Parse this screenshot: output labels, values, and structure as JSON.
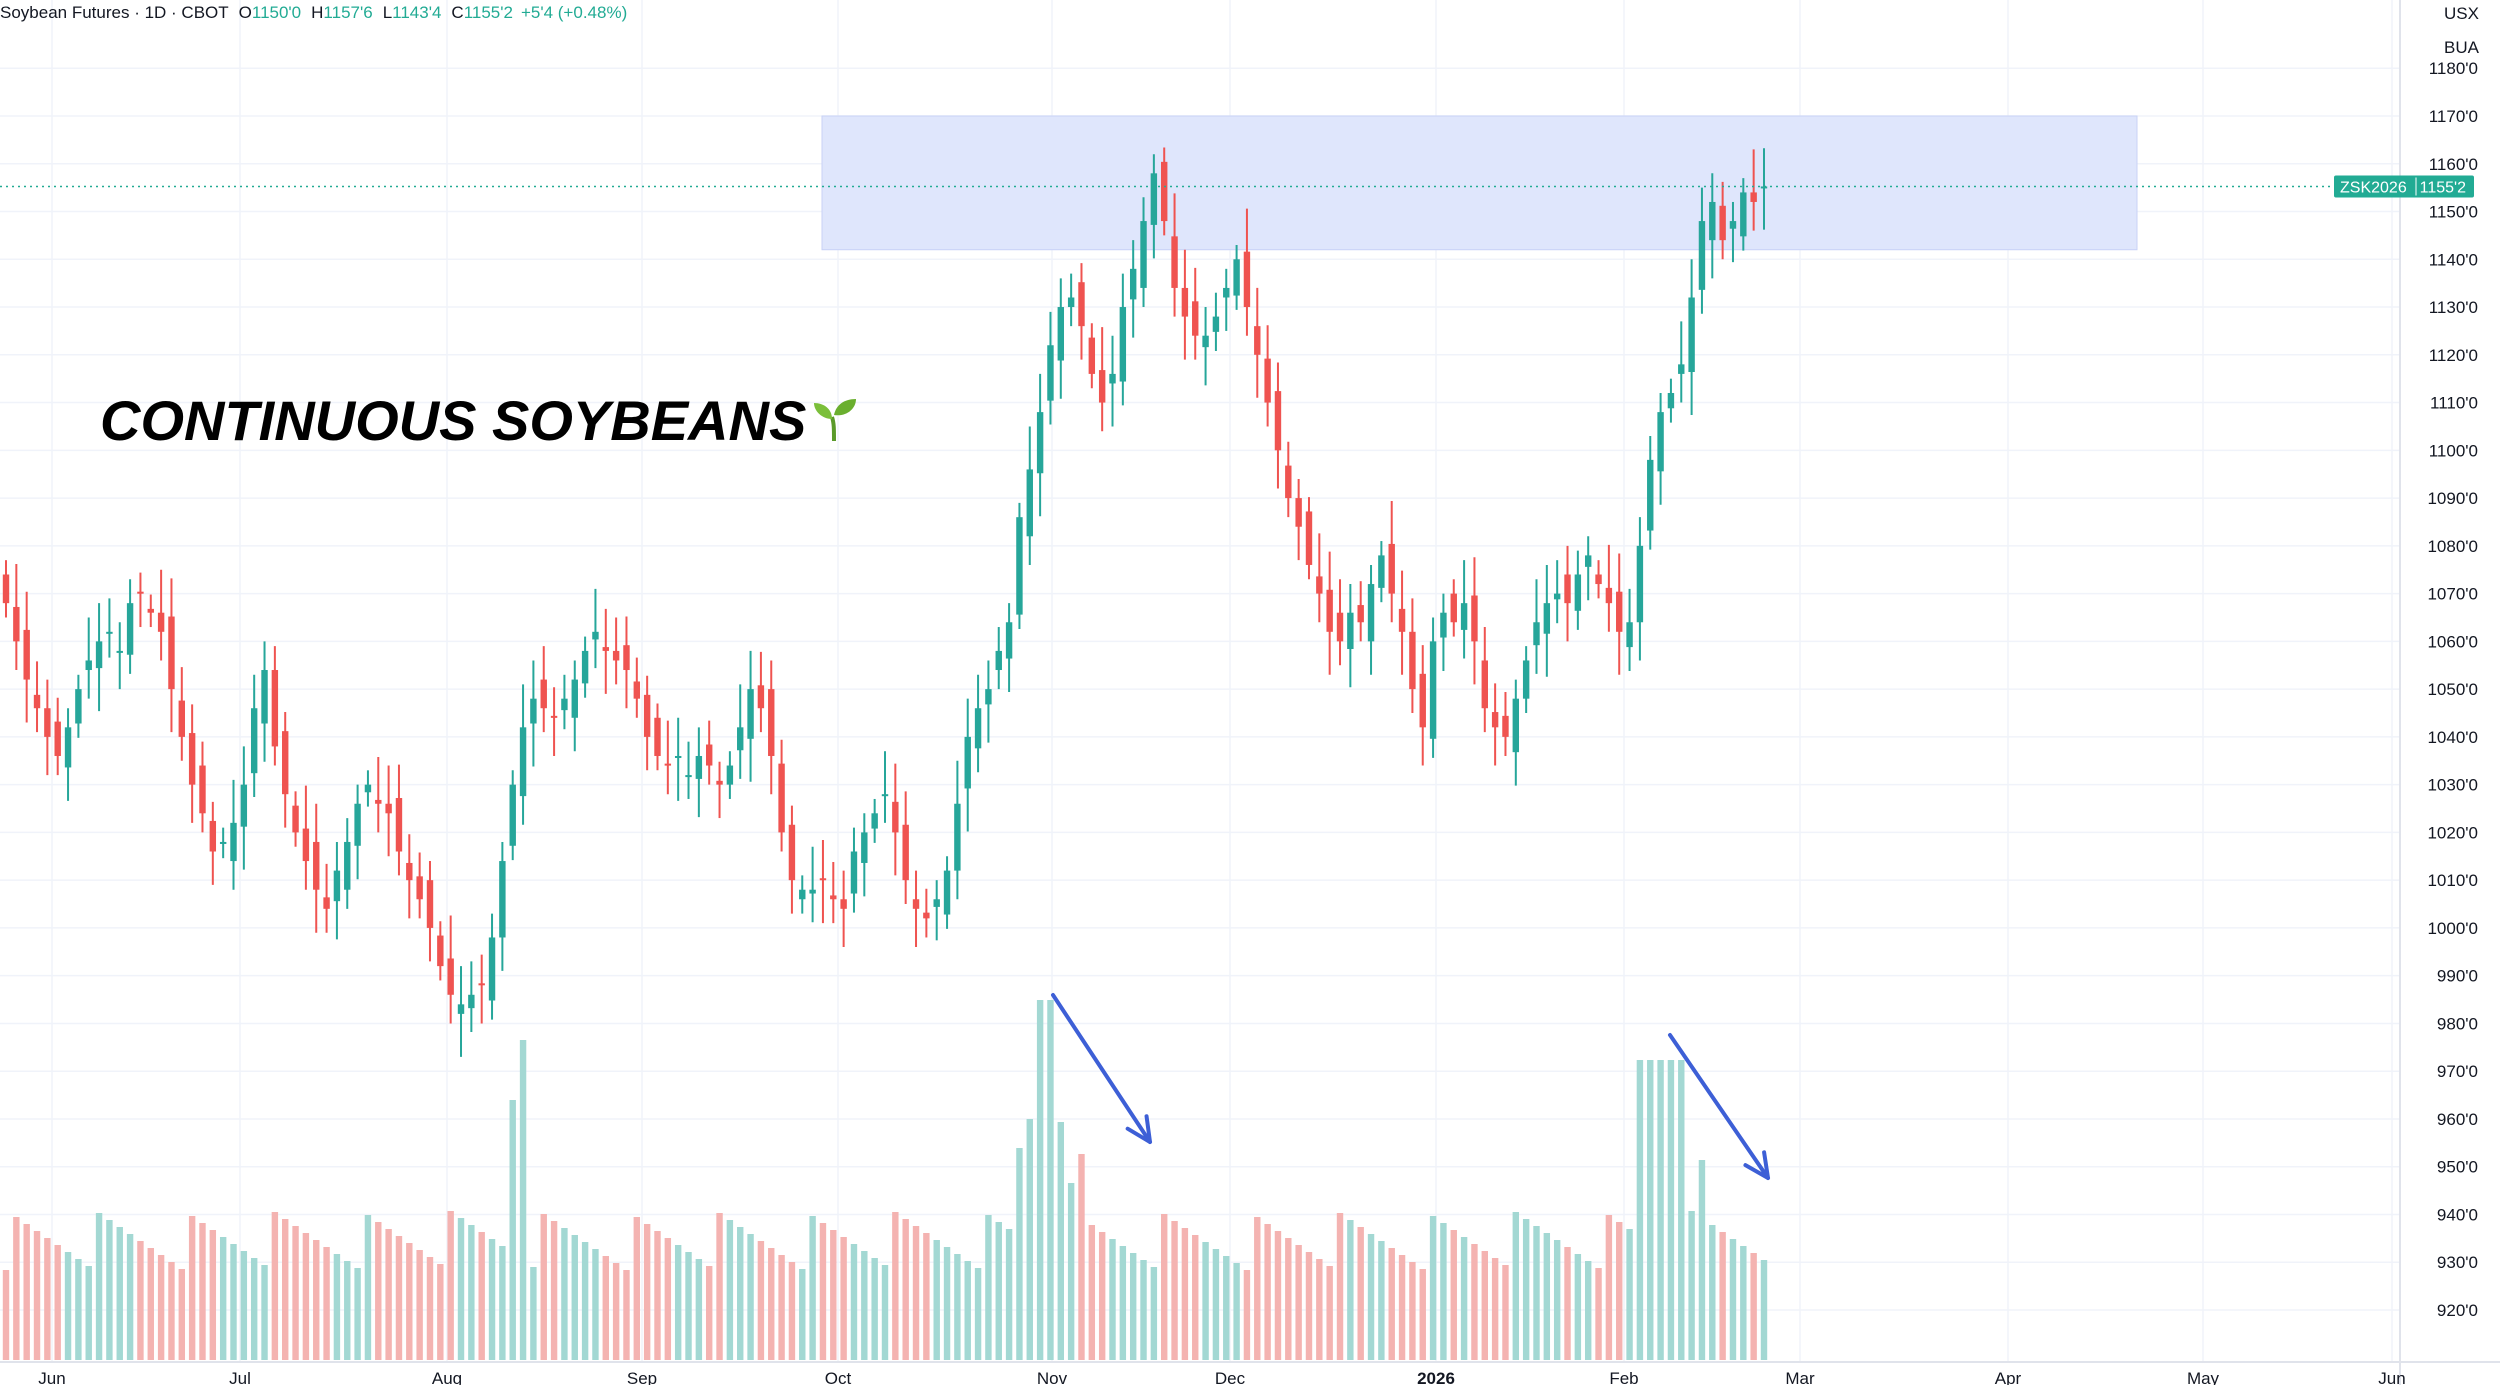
{
  "header": {
    "symbol": "Soybean Futures · 1D · CBOT",
    "o_label": "O",
    "o_value": "1150'0",
    "h_label": "H",
    "h_value": "1157'6",
    "l_label": "L",
    "l_value": "1143'4",
    "c_label": "C",
    "c_value": "1155'2",
    "change": "+5'4 (+0.48%)"
  },
  "scale_units": [
    "USX",
    "BUA"
  ],
  "annotation_title": "CONTINUOUS SOYBEANS",
  "annotation_emoji": "seedling-icon",
  "price_label": {
    "ticker": "ZSK2026",
    "price": "1155'2",
    "value": 1155.25
  },
  "colors": {
    "up": "#26a69a",
    "down": "#ef5350",
    "up_volume": "#a3d8d3",
    "down_volume": "#f4b3b1",
    "zone": "#dfe6fc",
    "arrow": "#3d5fd6",
    "price_tag": "#22ab94"
  },
  "chart_data": {
    "type": "candlestick",
    "y_axis": {
      "ticks": [
        920,
        930,
        940,
        950,
        960,
        970,
        980,
        990,
        1000,
        1010,
        1020,
        1030,
        1040,
        1050,
        1060,
        1070,
        1080,
        1090,
        1100,
        1110,
        1120,
        1130,
        1140,
        1150,
        1160,
        1170,
        1180
      ],
      "tick_labels": [
        "920'0",
        "930'0",
        "940'0",
        "950'0",
        "960'0",
        "970'0",
        "980'0",
        "990'0",
        "1000'0",
        "1010'0",
        "1020'0",
        "1030'0",
        "1040'0",
        "1050'0",
        "1060'0",
        "1070'0",
        "1080'0",
        "1090'0",
        "1100'0",
        "1110'0",
        "1120'0",
        "1130'0",
        "1140'0",
        "1150'0",
        "1160'0",
        "1170'0",
        "1180'0"
      ]
    },
    "x_axis": {
      "labels": [
        "Jun",
        "Jul",
        "Aug",
        "Sep",
        "Oct",
        "Nov",
        "Dec",
        "2026",
        "Feb",
        "Mar",
        "Apr",
        "May",
        "Jun"
      ],
      "bold": [
        false,
        false,
        false,
        false,
        false,
        false,
        false,
        true,
        false,
        false,
        false,
        false,
        false
      ]
    },
    "resistance_zone": {
      "low": 1142,
      "high": 1170
    },
    "last_price": 1155.25,
    "closes": [
      1068,
      1060,
      1052,
      1046,
      1040,
      1036,
      1042,
      1050,
      1056,
      1060,
      1062,
      1058,
      1068,
      1070,
      1066,
      1062,
      1050,
      1040,
      1030,
      1024,
      1016,
      1018,
      1022,
      1030,
      1046,
      1054,
      1038,
      1028,
      1020,
      1014,
      1008,
      1004,
      1012,
      1018,
      1026,
      1030,
      1026,
      1024,
      1016,
      1010,
      1006,
      1000,
      992,
      986,
      984,
      986,
      988,
      998,
      1014,
      1030,
      1042,
      1048,
      1046,
      1044,
      1048,
      1052,
      1058,
      1062,
      1058,
      1056,
      1054,
      1048,
      1040,
      1036,
      1034,
      1036,
      1032,
      1036,
      1034,
      1030,
      1034,
      1042,
      1050,
      1046,
      1036,
      1020,
      1010,
      1008,
      1008,
      1010,
      1006,
      1004,
      1016,
      1020,
      1024,
      1028,
      1020,
      1010,
      1004,
      1002,
      1006,
      1012,
      1026,
      1040,
      1046,
      1050,
      1058,
      1064,
      1086,
      1096,
      1108,
      1122,
      1130,
      1132,
      1126,
      1116,
      1110,
      1116,
      1130,
      1138,
      1148,
      1158,
      1148,
      1134,
      1128,
      1124,
      1124,
      1128,
      1134,
      1140,
      1130,
      1120,
      1110,
      1100,
      1090,
      1084,
      1076,
      1070,
      1062,
      1060,
      1066,
      1064,
      1072,
      1078,
      1070,
      1062,
      1050,
      1042,
      1060,
      1066,
      1064,
      1068,
      1060,
      1046,
      1042,
      1040,
      1048,
      1056,
      1064,
      1068,
      1070,
      1068,
      1074,
      1078,
      1072,
      1068,
      1062,
      1064,
      1080,
      1098,
      1108,
      1112,
      1118,
      1132,
      1148,
      1152,
      1144,
      1148,
      1154,
      1152,
      1155.25
    ],
    "volume_note": "relative daily volume bars; arrows mark declining volume into the highs"
  }
}
